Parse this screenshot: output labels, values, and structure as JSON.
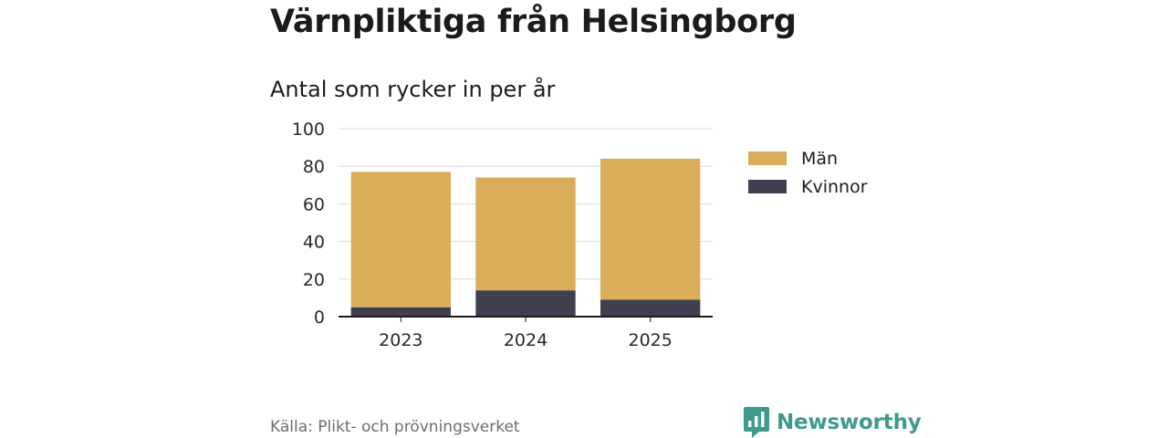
{
  "title": "Värnpliktiga från Helsingborg",
  "subtitle": "Antal som rycker in per år",
  "source": "Källa: Plikt- och prövningsverket",
  "brand": {
    "name": "Newsworthy",
    "icon": "newsworthy-logo-icon",
    "color": "#3f9a8e"
  },
  "colors": {
    "man": "#d9ad5a",
    "kvinnor": "#413f4f",
    "grid": "#dcdcdc",
    "axis": "#1b1b1b"
  },
  "chart_data": {
    "type": "bar",
    "stacked": true,
    "categories": [
      "2023",
      "2024",
      "2025"
    ],
    "series": [
      {
        "name": "Kvinnor",
        "values": [
          5,
          14,
          9
        ]
      },
      {
        "name": "Män",
        "values": [
          72,
          60,
          75
        ]
      }
    ],
    "ylim": [
      0,
      100
    ],
    "yticks": [
      "0",
      "20",
      "40",
      "60",
      "80",
      "100"
    ],
    "grid": true,
    "legend_position": "right",
    "legend": [
      "Män",
      "Kvinnor"
    ]
  }
}
